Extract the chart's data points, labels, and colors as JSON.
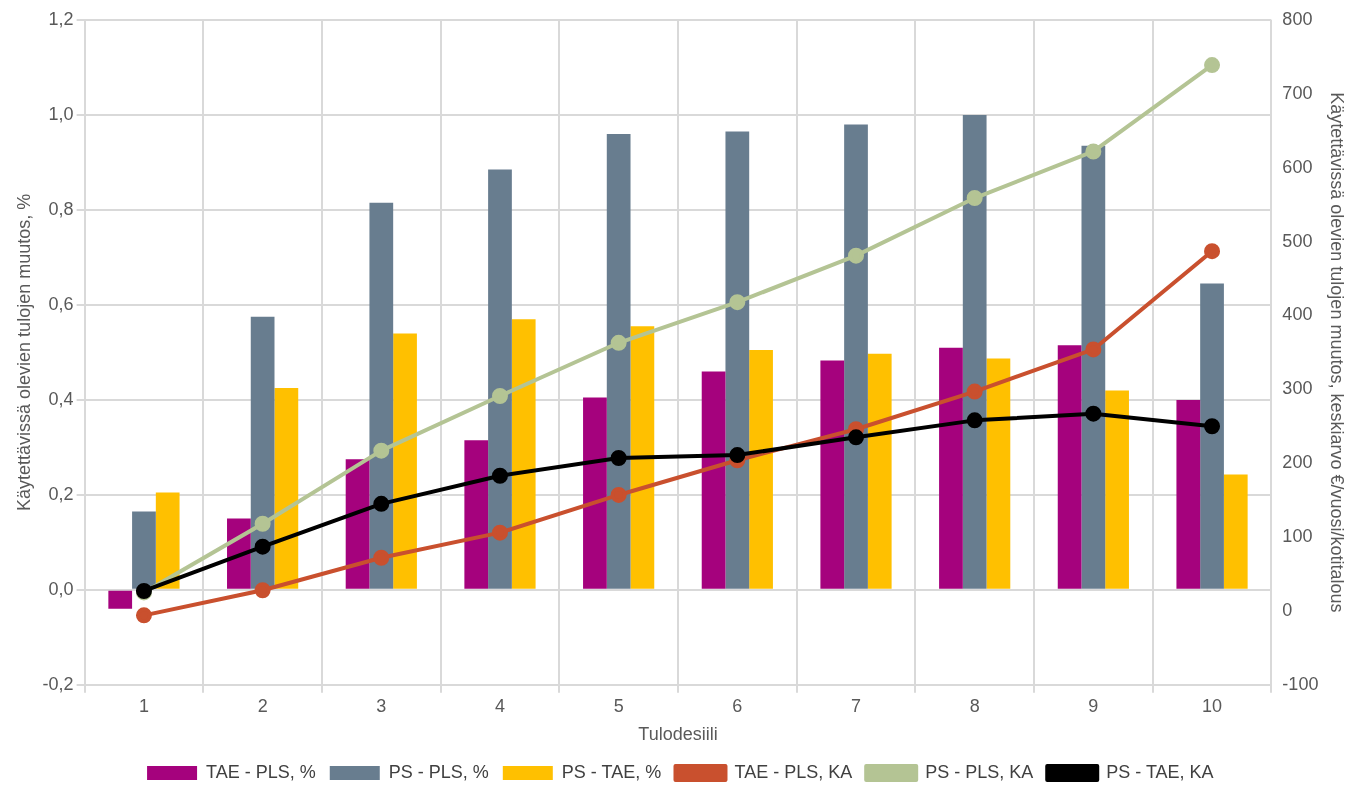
{
  "chart_data": {
    "type": "bar",
    "xlabel": "Tulodesiili",
    "ylabel": "Käytettävissä olevien tulojen muutos, %",
    "y2label": "Käytettävissä olevien tulojen muutos, keskiarvo €/vuosi/kotitalous",
    "categories": [
      "1",
      "2",
      "3",
      "4",
      "5",
      "6",
      "7",
      "8",
      "9",
      "10"
    ],
    "series": [
      {
        "name": "TAE - PLS, %",
        "color": "#a5027d",
        "values": [
          -0.04,
          0.15,
          0.275,
          0.315,
          0.405,
          0.46,
          0.483,
          0.51,
          0.515,
          0.4
        ]
      },
      {
        "name": "PS - PLS, %",
        "color": "#687d8f",
        "values": [
          0.165,
          0.575,
          0.815,
          0.885,
          0.96,
          0.965,
          0.98,
          1.0,
          0.935,
          0.645
        ]
      },
      {
        "name": "PS - TAE, %",
        "color": "#ffc000",
        "values": [
          0.205,
          0.425,
          0.54,
          0.57,
          0.555,
          0.505,
          0.497,
          0.487,
          0.42,
          0.243
        ]
      },
      {
        "name": "TAE - PLS, KA",
        "type": "line",
        "axis": "y2",
        "color": "#c9502e",
        "values": [
          -6,
          28,
          72,
          106,
          157,
          204,
          246,
          297,
          354,
          487
        ]
      },
      {
        "name": "PS - PLS, KA",
        "type": "line",
        "axis": "y2",
        "color": "#b4c494",
        "values": [
          25,
          118,
          217,
          291,
          363,
          418,
          481,
          559,
          622,
          739
        ]
      },
      {
        "name": "PS - TAE, KA",
        "type": "line",
        "axis": "y2",
        "color": "#000000",
        "values": [
          27,
          87,
          145,
          183,
          207,
          211,
          235,
          258,
          267,
          250
        ]
      }
    ],
    "ylim": [
      -0.2,
      1.2
    ],
    "yticks": [
      {
        "value": -0.2,
        "label": "-0,2"
      },
      {
        "value": 0,
        "label": "0,0"
      },
      {
        "value": 0.2,
        "label": "0,2"
      },
      {
        "value": 0.4,
        "label": "0,4"
      },
      {
        "value": 0.6,
        "label": "0,6"
      },
      {
        "value": 0.8,
        "label": "0,8"
      },
      {
        "value": 1.0,
        "label": "1,0"
      },
      {
        "value": 1.2,
        "label": "1,2"
      }
    ],
    "y2lim": [
      -100,
      800
    ],
    "y2ticks": [
      -100,
      0,
      100,
      200,
      300,
      400,
      500,
      600,
      700,
      800
    ],
    "grid": true,
    "legend": "bottom",
    "marker": "circle",
    "line_style": "solid"
  }
}
